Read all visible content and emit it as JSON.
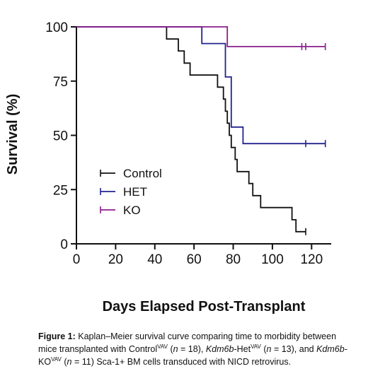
{
  "chart_data": {
    "type": "line",
    "step": true,
    "xlabel": "Days Elapsed Post-Transplant",
    "ylabel": "Survival (%)",
    "xlim": [
      0,
      130
    ],
    "ylim": [
      0,
      100
    ],
    "xticks": [
      "0",
      "20",
      "40",
      "60",
      "80",
      "100",
      "120"
    ],
    "yticks": [
      "0",
      "25",
      "50",
      "75",
      "100"
    ],
    "legend": "inside-lower-left",
    "series": [
      {
        "name": "Control",
        "color": "#111111",
        "points": [
          [
            0,
            100
          ],
          [
            46,
            100
          ],
          [
            46,
            94.4
          ],
          [
            52,
            94.4
          ],
          [
            52,
            88.9
          ],
          [
            55,
            88.9
          ],
          [
            55,
            83.3
          ],
          [
            58,
            83.3
          ],
          [
            58,
            77.8
          ],
          [
            72,
            77.8
          ],
          [
            72,
            72.2
          ],
          [
            75,
            72.2
          ],
          [
            75,
            66.7
          ],
          [
            76,
            66.7
          ],
          [
            76,
            61.1
          ],
          [
            77,
            61.1
          ],
          [
            77,
            55.6
          ],
          [
            78,
            55.6
          ],
          [
            78,
            50
          ],
          [
            79,
            50
          ],
          [
            79,
            44.4
          ],
          [
            81,
            44.4
          ],
          [
            81,
            38.9
          ],
          [
            82,
            38.9
          ],
          [
            82,
            33.3
          ],
          [
            88,
            33.3
          ],
          [
            88,
            27.8
          ],
          [
            90,
            27.8
          ],
          [
            90,
            22.2
          ],
          [
            94,
            22.2
          ],
          [
            94,
            16.7
          ],
          [
            110,
            16.7
          ],
          [
            110,
            11.1
          ],
          [
            112,
            11.1
          ],
          [
            112,
            5.6
          ],
          [
            117,
            5.6
          ]
        ],
        "censored": [
          [
            117,
            5.6
          ]
        ]
      },
      {
        "name": "HET",
        "color": "#23238f",
        "points": [
          [
            0,
            100
          ],
          [
            64,
            100
          ],
          [
            64,
            92.3
          ],
          [
            76,
            92.3
          ],
          [
            76,
            76.9
          ],
          [
            79,
            76.9
          ],
          [
            79,
            53.8
          ],
          [
            85,
            53.8
          ],
          [
            85,
            46.2
          ],
          [
            127,
            46.2
          ]
        ],
        "censored": [
          [
            117,
            46.2
          ],
          [
            127,
            46.2
          ]
        ]
      },
      {
        "name": "KO",
        "color": "#8b1e8b",
        "points": [
          [
            0,
            100
          ],
          [
            77,
            100
          ],
          [
            77,
            90.9
          ],
          [
            127,
            90.9
          ]
        ],
        "censored": [
          [
            115,
            90.9
          ],
          [
            117,
            90.9
          ],
          [
            127,
            90.9
          ]
        ]
      }
    ]
  },
  "caption": {
    "label": "Figure 1:",
    "t1": " Kaplan–Meier survival curve comparing time to morbidity between mice transplanted with Control",
    "sup1": "VAV",
    "t2": " (",
    "n1": "n",
    "t3": " = 18), ",
    "gene1": "Kdm6b",
    "t4": "-Het",
    "sup2": "VAV",
    "t5": " (",
    "n2": "n",
    "t6": " = 13), and ",
    "gene2": "Kdm6b",
    "t7": "-KO",
    "sup3": "VAV",
    "t8": " (",
    "n3": "n",
    "t9": " = 11) Sca-1+ BM cells transduced with NICD retrovirus."
  }
}
